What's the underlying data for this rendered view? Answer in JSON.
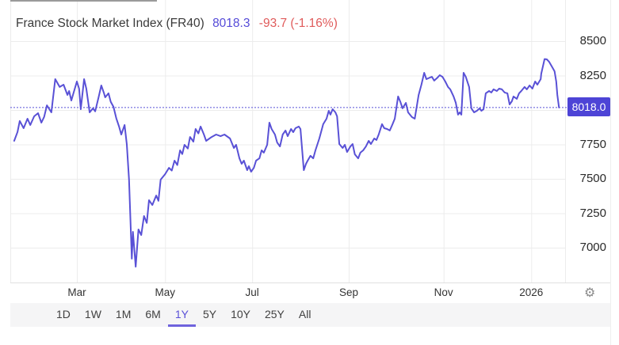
{
  "header": {
    "title": "France Stock Market Index (FR40)",
    "price": "8018.3",
    "change": "-93.7 (-1.16%)"
  },
  "colors": {
    "accent_line": "#5951d6",
    "badge_bg": "#4d44d6",
    "price_text": "#554bd8",
    "negative_text": "#e05b5b",
    "grid": "#ececec",
    "axis_border": "#e0e0e0",
    "tick_text": "#2a2a2a"
  },
  "settings": {
    "icon": "gear-icon",
    "glyph": "⚙"
  },
  "toolbar": {
    "ranges": [
      {
        "label": "1D",
        "active": false
      },
      {
        "label": "1W",
        "active": false
      },
      {
        "label": "1M",
        "active": false
      },
      {
        "label": "6M",
        "active": false
      },
      {
        "label": "1Y",
        "active": true
      },
      {
        "label": "5Y",
        "active": false
      },
      {
        "label": "10Y",
        "active": false
      },
      {
        "label": "25Y",
        "active": false
      },
      {
        "label": "All",
        "active": false
      }
    ]
  },
  "chart_data": {
    "type": "line",
    "title": "France Stock Market Index (FR40)",
    "last_price": 8018.3,
    "change": -93.7,
    "change_pct": -1.16,
    "current_value_label": "8018.0",
    "grid": true,
    "legend": "none",
    "y_axis_side": "right",
    "y_ticks": [
      8500,
      8250,
      8000,
      7750,
      7500,
      7250,
      7000
    ],
    "ylim": [
      6800,
      8560
    ],
    "x_ticks": [
      {
        "label": "Mar",
        "f": 0.12
      },
      {
        "label": "May",
        "f": 0.279
      },
      {
        "label": "Jul",
        "f": 0.436
      },
      {
        "label": "Sep",
        "f": 0.61
      },
      {
        "label": "Nov",
        "f": 0.781
      },
      {
        "label": "2026",
        "f": 0.939
      }
    ],
    "series": [
      {
        "name": "FR40",
        "points": [
          [
            0.007,
            7776
          ],
          [
            0.013,
            7840
          ],
          [
            0.017,
            7920
          ],
          [
            0.024,
            7868
          ],
          [
            0.031,
            7937
          ],
          [
            0.036,
            7891
          ],
          [
            0.043,
            7954
          ],
          [
            0.05,
            7977
          ],
          [
            0.056,
            7908
          ],
          [
            0.061,
            7950
          ],
          [
            0.066,
            8034
          ],
          [
            0.074,
            7983
          ],
          [
            0.081,
            8224
          ],
          [
            0.089,
            8167
          ],
          [
            0.096,
            8184
          ],
          [
            0.103,
            8109
          ],
          [
            0.106,
            8138
          ],
          [
            0.11,
            8069
          ],
          [
            0.12,
            8207
          ],
          [
            0.124,
            8155
          ],
          [
            0.127,
            8006
          ],
          [
            0.133,
            8224
          ],
          [
            0.137,
            8155
          ],
          [
            0.143,
            7983
          ],
          [
            0.149,
            8012
          ],
          [
            0.153,
            7990
          ],
          [
            0.159,
            8090
          ],
          [
            0.164,
            8178
          ],
          [
            0.169,
            8120
          ],
          [
            0.171,
            8092
          ],
          [
            0.177,
            8121
          ],
          [
            0.181,
            8060
          ],
          [
            0.186,
            8023
          ],
          [
            0.191,
            7940
          ],
          [
            0.196,
            7880
          ],
          [
            0.2,
            7822
          ],
          [
            0.206,
            7891
          ],
          [
            0.21,
            7750
          ],
          [
            0.214,
            7494
          ],
          [
            0.219,
            6920
          ],
          [
            0.221,
            7115
          ],
          [
            0.226,
            6862
          ],
          [
            0.231,
            7132
          ],
          [
            0.236,
            7092
          ],
          [
            0.241,
            7230
          ],
          [
            0.246,
            7180
          ],
          [
            0.25,
            7345
          ],
          [
            0.256,
            7310
          ],
          [
            0.263,
            7379
          ],
          [
            0.267,
            7340
          ],
          [
            0.271,
            7494
          ],
          [
            0.279,
            7534
          ],
          [
            0.286,
            7580
          ],
          [
            0.291,
            7560
          ],
          [
            0.296,
            7632
          ],
          [
            0.301,
            7600
          ],
          [
            0.306,
            7707
          ],
          [
            0.31,
            7680
          ],
          [
            0.314,
            7747
          ],
          [
            0.32,
            7720
          ],
          [
            0.324,
            7804
          ],
          [
            0.33,
            7770
          ],
          [
            0.334,
            7862
          ],
          [
            0.339,
            7830
          ],
          [
            0.343,
            7880
          ],
          [
            0.349,
            7822
          ],
          [
            0.353,
            7776
          ],
          [
            0.363,
            7804
          ],
          [
            0.371,
            7822
          ],
          [
            0.379,
            7810
          ],
          [
            0.386,
            7822
          ],
          [
            0.396,
            7793
          ],
          [
            0.403,
            7724
          ],
          [
            0.407,
            7747
          ],
          [
            0.413,
            7649
          ],
          [
            0.417,
            7609
          ],
          [
            0.421,
            7632
          ],
          [
            0.427,
            7563
          ],
          [
            0.43,
            7592
          ],
          [
            0.434,
            7552
          ],
          [
            0.439,
            7580
          ],
          [
            0.443,
            7632
          ],
          [
            0.449,
            7649
          ],
          [
            0.453,
            7707
          ],
          [
            0.457,
            7690
          ],
          [
            0.463,
            7747
          ],
          [
            0.467,
            7908
          ],
          [
            0.471,
            7862
          ],
          [
            0.477,
            7822
          ],
          [
            0.481,
            7764
          ],
          [
            0.486,
            7735
          ],
          [
            0.491,
            7822
          ],
          [
            0.496,
            7851
          ],
          [
            0.5,
            7810
          ],
          [
            0.506,
            7862
          ],
          [
            0.51,
            7839
          ],
          [
            0.514,
            7868
          ],
          [
            0.52,
            7880
          ],
          [
            0.523,
            7862
          ],
          [
            0.529,
            7563
          ],
          [
            0.533,
            7609
          ],
          [
            0.536,
            7632
          ],
          [
            0.541,
            7667
          ],
          [
            0.546,
            7649
          ],
          [
            0.55,
            7707
          ],
          [
            0.557,
            7793
          ],
          [
            0.564,
            7897
          ],
          [
            0.57,
            7937
          ],
          [
            0.574,
            7994
          ],
          [
            0.577,
            7966
          ],
          [
            0.581,
            8006
          ],
          [
            0.586,
            7983
          ],
          [
            0.589,
            7954
          ],
          [
            0.593,
            7753
          ],
          [
            0.599,
            7724
          ],
          [
            0.603,
            7747
          ],
          [
            0.607,
            7695
          ],
          [
            0.613,
            7735
          ],
          [
            0.617,
            7753
          ],
          [
            0.621,
            7678
          ],
          [
            0.627,
            7649
          ],
          [
            0.631,
            7690
          ],
          [
            0.636,
            7707
          ],
          [
            0.641,
            7735
          ],
          [
            0.646,
            7776
          ],
          [
            0.65,
            7753
          ],
          [
            0.656,
            7793
          ],
          [
            0.66,
            7782
          ],
          [
            0.664,
            7822
          ],
          [
            0.67,
            7897
          ],
          [
            0.674,
            7868
          ],
          [
            0.679,
            7862
          ],
          [
            0.684,
            7851
          ],
          [
            0.689,
            7897
          ],
          [
            0.693,
            7937
          ],
          [
            0.699,
            8098
          ],
          [
            0.703,
            8060
          ],
          [
            0.707,
            8012
          ],
          [
            0.713,
            8052
          ],
          [
            0.717,
            7983
          ],
          [
            0.724,
            7948
          ],
          [
            0.729,
            7937
          ],
          [
            0.736,
            8109
          ],
          [
            0.741,
            8184
          ],
          [
            0.746,
            8270
          ],
          [
            0.75,
            8224
          ],
          [
            0.756,
            8235
          ],
          [
            0.76,
            8241
          ],
          [
            0.764,
            8213
          ],
          [
            0.77,
            8235
          ],
          [
            0.774,
            8253
          ],
          [
            0.779,
            8241
          ],
          [
            0.784,
            8207
          ],
          [
            0.789,
            8167
          ],
          [
            0.793,
            8150
          ],
          [
            0.799,
            8098
          ],
          [
            0.803,
            8052
          ],
          [
            0.807,
            7966
          ],
          [
            0.81,
            7983
          ],
          [
            0.813,
            7966
          ],
          [
            0.817,
            8270
          ],
          [
            0.821,
            8241
          ],
          [
            0.827,
            8167
          ],
          [
            0.831,
            8012
          ],
          [
            0.836,
            7983
          ],
          [
            0.841,
            7994
          ],
          [
            0.846,
            8012
          ],
          [
            0.849,
            7994
          ],
          [
            0.853,
            8006
          ],
          [
            0.857,
            8121
          ],
          [
            0.863,
            8138
          ],
          [
            0.867,
            8127
          ],
          [
            0.871,
            8150
          ],
          [
            0.877,
            8138
          ],
          [
            0.881,
            8155
          ],
          [
            0.886,
            8150
          ],
          [
            0.891,
            8127
          ],
          [
            0.896,
            8121
          ],
          [
            0.9,
            8040
          ],
          [
            0.904,
            8063
          ],
          [
            0.907,
            8098
          ],
          [
            0.913,
            8081
          ],
          [
            0.917,
            8121
          ],
          [
            0.921,
            8138
          ],
          [
            0.927,
            8167
          ],
          [
            0.931,
            8150
          ],
          [
            0.936,
            8178
          ],
          [
            0.941,
            8155
          ],
          [
            0.946,
            8207
          ],
          [
            0.95,
            8184
          ],
          [
            0.956,
            8224
          ],
          [
            0.957,
            8264
          ],
          [
            0.963,
            8370
          ],
          [
            0.967,
            8368
          ],
          [
            0.971,
            8351
          ],
          [
            0.977,
            8310
          ],
          [
            0.981,
            8281
          ],
          [
            0.984,
            8207
          ],
          [
            0.986,
            8109
          ],
          [
            0.989,
            8018
          ]
        ]
      }
    ]
  }
}
